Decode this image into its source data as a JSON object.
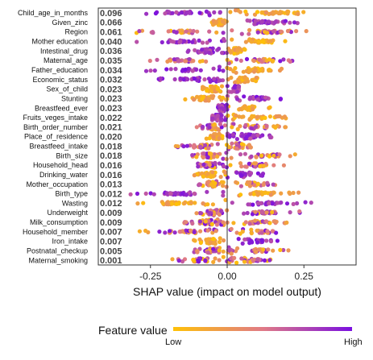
{
  "chart_data": {
    "type": "scatter",
    "subtype": "shap-beeswarm",
    "title": "",
    "xlabel": "SHAP value (impact on model output)",
    "ylabel": "",
    "xlim": [
      -0.42,
      0.42
    ],
    "x_ticks": [
      -0.25,
      0.0,
      0.25
    ],
    "x_tick_labels": [
      "-0.25",
      "0.00",
      "0.25"
    ],
    "grid": false,
    "zero_line": true,
    "legend": {
      "title": "Feature value",
      "low_label": "Low",
      "high_label": "High",
      "placement": "bottom",
      "colors": [
        "#ffc107",
        "#e07a86",
        "#7a0fe0"
      ]
    },
    "features": [
      {
        "name": "Child_age_in_months",
        "importance": "0.096",
        "neg": [
          -0.33,
          0.0
        ],
        "pos": [
          0.0,
          0.32
        ],
        "low_side": "pos"
      },
      {
        "name": "Given_zinc",
        "importance": "0.066",
        "neg": [
          -0.05,
          0.0
        ],
        "pos": [
          0.0,
          0.25
        ],
        "low_side": "neg"
      },
      {
        "name": "Region",
        "importance": "0.061",
        "neg": [
          -0.3,
          0.0
        ],
        "pos": [
          0.0,
          0.28
        ],
        "low_side": "mixed"
      },
      {
        "name": "Mother education",
        "importance": "0.040",
        "neg": [
          -0.3,
          0.0
        ],
        "pos": [
          0.0,
          0.2
        ],
        "low_side": "pos"
      },
      {
        "name": "Intestinal_drug",
        "importance": "0.036",
        "neg": [
          -0.13,
          0.0
        ],
        "pos": [
          0.0,
          0.06
        ],
        "low_side": "pos"
      },
      {
        "name": "Maternal_age",
        "importance": "0.035",
        "neg": [
          -0.3,
          0.0
        ],
        "pos": [
          0.0,
          0.24
        ],
        "low_side": "mixed"
      },
      {
        "name": "Father_education",
        "importance": "0.034",
        "neg": [
          -0.28,
          0.0
        ],
        "pos": [
          0.0,
          0.18
        ],
        "low_side": "pos"
      },
      {
        "name": "Economic_status",
        "importance": "0.032",
        "neg": [
          -0.25,
          0.0
        ],
        "pos": [
          0.0,
          0.1
        ],
        "low_side": "pos"
      },
      {
        "name": "Sex_of_child",
        "importance": "0.023",
        "neg": [
          -0.08,
          0.0
        ],
        "pos": [
          0.0,
          0.06
        ],
        "low_side": "neg"
      },
      {
        "name": "Stunting",
        "importance": "0.023",
        "neg": [
          -0.14,
          0.0
        ],
        "pos": [
          0.0,
          0.2
        ],
        "low_side": "neg"
      },
      {
        "name": "Breastfeed_ever",
        "importance": "0.023",
        "neg": [
          -0.03,
          0.0
        ],
        "pos": [
          0.0,
          0.14
        ],
        "low_side": "pos"
      },
      {
        "name": "Fruits_veges_intake",
        "importance": "0.022",
        "neg": [
          -0.05,
          0.0
        ],
        "pos": [
          0.0,
          0.2
        ],
        "low_side": "pos"
      },
      {
        "name": "Birth_order_number",
        "importance": "0.021",
        "neg": [
          -0.1,
          0.0
        ],
        "pos": [
          0.0,
          0.2
        ],
        "low_side": "mixed"
      },
      {
        "name": "Place_of_residence",
        "importance": "0.020",
        "neg": [
          -0.07,
          0.0
        ],
        "pos": [
          0.0,
          0.16
        ],
        "low_side": "neg"
      },
      {
        "name": "Breastfeed_intake",
        "importance": "0.018",
        "neg": [
          -0.17,
          0.0
        ],
        "pos": [
          0.0,
          0.08
        ],
        "low_side": "mixed"
      },
      {
        "name": "Birth_size",
        "importance": "0.018",
        "neg": [
          -0.12,
          0.0
        ],
        "pos": [
          0.0,
          0.26
        ],
        "low_side": "mixed"
      },
      {
        "name": "Household_head",
        "importance": "0.016",
        "neg": [
          -0.11,
          0.0
        ],
        "pos": [
          0.0,
          0.2
        ],
        "low_side": "mixed"
      },
      {
        "name": "Drinking_water",
        "importance": "0.016",
        "neg": [
          -0.11,
          0.0
        ],
        "pos": [
          0.0,
          0.12
        ],
        "low_side": "neg"
      },
      {
        "name": "Mother_occupation",
        "importance": "0.013",
        "neg": [
          -0.1,
          0.0
        ],
        "pos": [
          0.0,
          0.16
        ],
        "low_side": "mixed"
      },
      {
        "name": "Birth_type",
        "importance": "0.012",
        "neg": [
          -0.32,
          0.0
        ],
        "pos": [
          0.0,
          0.24
        ],
        "low_side": "pos"
      },
      {
        "name": "Wasting",
        "importance": "0.012",
        "neg": [
          -0.33,
          0.0
        ],
        "pos": [
          0.0,
          0.28
        ],
        "low_side": "neg"
      },
      {
        "name": "Underweight",
        "importance": "0.009",
        "neg": [
          -0.1,
          0.0
        ],
        "pos": [
          0.0,
          0.24
        ],
        "low_side": "mixed"
      },
      {
        "name": "Milk_consumption",
        "importance": "0.009",
        "neg": [
          -0.14,
          0.0
        ],
        "pos": [
          0.0,
          0.2
        ],
        "low_side": "mixed"
      },
      {
        "name": "Household_member",
        "importance": "0.007",
        "neg": [
          -0.29,
          0.0
        ],
        "pos": [
          0.0,
          0.22
        ],
        "low_side": "mixed"
      },
      {
        "name": "Iron_intake",
        "importance": "0.007",
        "neg": [
          -0.11,
          0.0
        ],
        "pos": [
          0.0,
          0.18
        ],
        "low_side": "neg"
      },
      {
        "name": "Postnatal_checkup",
        "importance": "0.005",
        "neg": [
          -0.11,
          0.0
        ],
        "pos": [
          0.0,
          0.2
        ],
        "low_side": "mixed"
      },
      {
        "name": "Maternal_smoking",
        "importance": "0.001",
        "neg": [
          -0.18,
          0.0
        ],
        "pos": [
          0.0,
          0.16
        ],
        "low_side": "mixed"
      }
    ]
  }
}
